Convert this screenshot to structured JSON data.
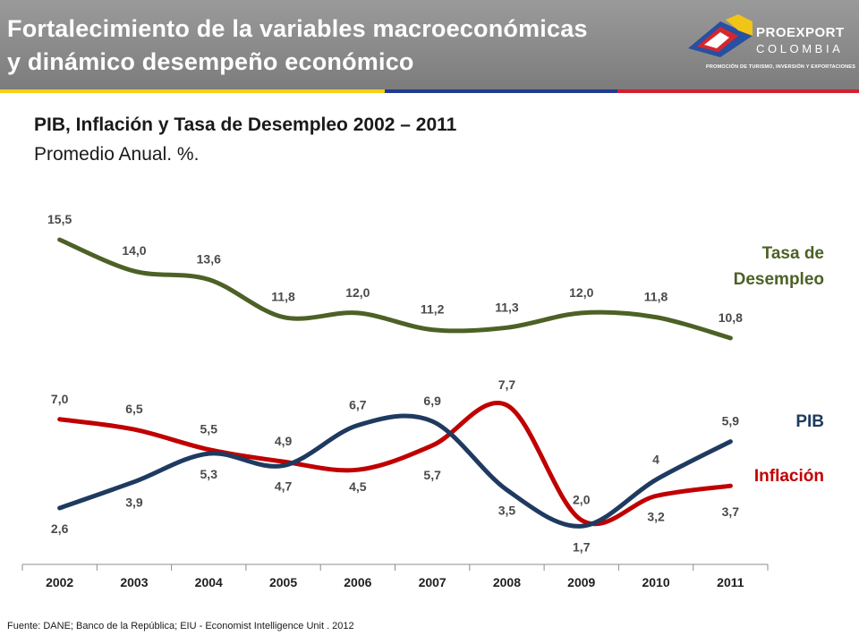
{
  "header": {
    "title_line1": "Fortalecimiento de la variables macroeconómicas",
    "title_line2": "y dinámico desempeño económico"
  },
  "logo": {
    "name": "PROEXPORT",
    "country": "COLOMBIA",
    "tagline": "PROMOCIÓN DE TURISMO, INVERSIÓN Y EXPORTACIONES"
  },
  "colors": {
    "header_bg": "#8a8a8a",
    "stripe_yellow": "#f5cf1b",
    "stripe_blue": "#1f3c8e",
    "stripe_red": "#d21f2d",
    "unemployment": "#4d6126",
    "gdp": "#1f3a60",
    "inflation": "#c00000",
    "logo_yellow": "#f2c418",
    "logo_blue": "#2850a0",
    "logo_red": "#d8262e"
  },
  "chart_data": {
    "type": "line",
    "title": "PIB, Inflación y Tasa de Desempleo 2002 – 2011",
    "subtitle": "Promedio Anual. %.",
    "categories": [
      "2002",
      "2003",
      "2004",
      "2005",
      "2006",
      "2007",
      "2008",
      "2009",
      "2010",
      "2011"
    ],
    "legend_placement": "right, next to line ends",
    "grid": false,
    "series": [
      {
        "key": "unemployment",
        "name": "Tasa de Desempleo",
        "name_lines": [
          "Tasa de",
          "Desempleo"
        ],
        "values": [
          15.5,
          14.0,
          13.6,
          11.8,
          12.0,
          11.2,
          11.3,
          12.0,
          11.8,
          10.8
        ],
        "labels": [
          "15,5",
          "14,0",
          "13,6",
          "11,8",
          "12,0",
          "11,2",
          "11,3",
          "12,0",
          "11,8",
          "10,8"
        ]
      },
      {
        "key": "gdp",
        "name": "PIB",
        "values": [
          2.6,
          3.9,
          5.3,
          4.7,
          6.7,
          6.9,
          3.5,
          1.7,
          4.0,
          5.9
        ],
        "labels": [
          "2,6",
          "3,9",
          "5,3",
          "4,7",
          "6,7",
          "6,9",
          "3,5",
          "1,7",
          "4",
          "5,9"
        ]
      },
      {
        "key": "inflation",
        "name": "Inflación",
        "values": [
          7.0,
          6.5,
          5.5,
          4.9,
          4.5,
          5.7,
          7.7,
          2.0,
          3.2,
          3.7
        ],
        "labels": [
          "7,0",
          "6,5",
          "5,5",
          "4,9",
          "4,5",
          "5,7",
          "7,7",
          "2,0",
          "3,2",
          "3,7"
        ]
      }
    ]
  },
  "source": "Fuente: DANE; Banco de la República; EIU - Economist Intelligence Unit . 2012"
}
